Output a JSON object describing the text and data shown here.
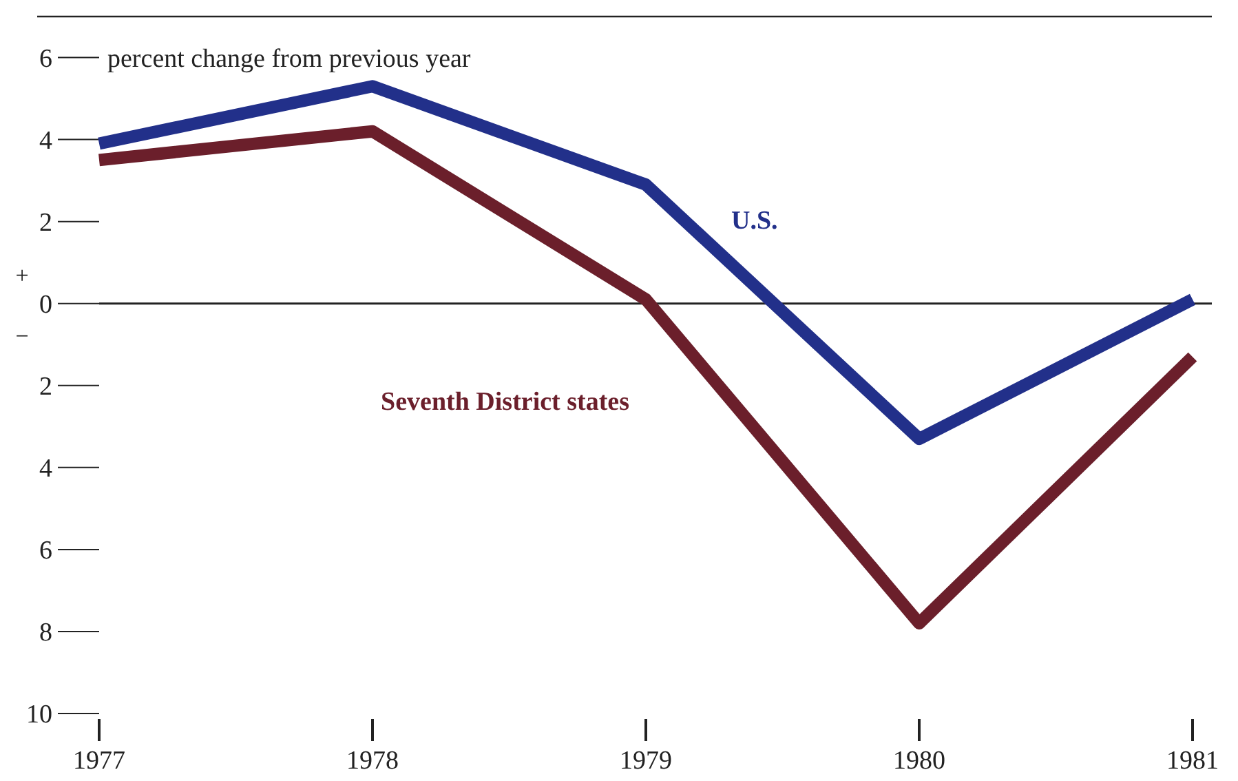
{
  "chart_data": {
    "type": "line",
    "ylabel": "percent change from previous year",
    "x": [
      1977,
      1978,
      1979,
      1980,
      1981
    ],
    "series": [
      {
        "name": "U.S.",
        "color": "#22308a",
        "values": [
          3.9,
          5.3,
          2.9,
          -3.3,
          0.1
        ]
      },
      {
        "name": "Seventh District states",
        "color": "#6b1f2b",
        "values": [
          3.5,
          4.2,
          0.1,
          -7.8,
          -1.3
        ]
      }
    ],
    "xlim": [
      1977,
      1981
    ],
    "xticks": [
      1977,
      1978,
      1979,
      1980,
      1981
    ],
    "ylim": [
      -10,
      7
    ],
    "yticks": [
      {
        "value": -10,
        "label": "10"
      },
      {
        "value": -8,
        "label": "8"
      },
      {
        "value": -6,
        "label": "6"
      },
      {
        "value": -4,
        "label": "4"
      },
      {
        "value": -2,
        "label": "2"
      },
      0,
      2,
      4,
      6
    ],
    "ref_lines": [
      {
        "axis": "y",
        "value": 0,
        "color": "#222222"
      }
    ],
    "annotations": [
      "+",
      "−"
    ],
    "line_style": "solid"
  }
}
